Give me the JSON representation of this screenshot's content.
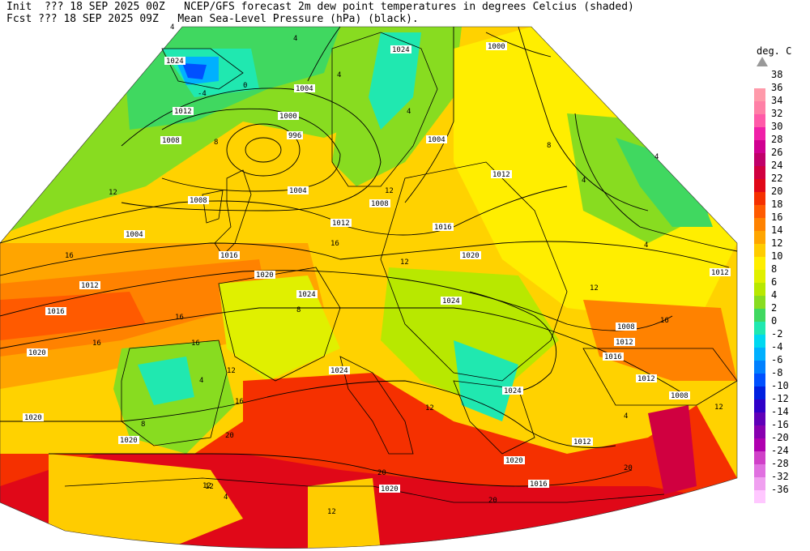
{
  "header": {
    "line1_left": "Init  ??? 18 SEP 2025 00Z",
    "line1_right": "NCEP/GFS forecast 2m dew point temperatures in degrees Celcius (shaded)",
    "line2_left": "Fcst ??? 18 SEP 2025 09Z",
    "line2_right": "Mean Sea-Level Pressure (hPa) (black)."
  },
  "legend": {
    "title": "deg. C",
    "levels": [
      {
        "label": "38",
        "color": "#ffb3b3"
      },
      {
        "label": "36",
        "color": "#ff9aaa"
      },
      {
        "label": "34",
        "color": "#ff80a6"
      },
      {
        "label": "32",
        "color": "#ff5aa8"
      },
      {
        "label": "30",
        "color": "#f020a8"
      },
      {
        "label": "28",
        "color": "#d00090"
      },
      {
        "label": "26",
        "color": "#c0006a"
      },
      {
        "label": "24",
        "color": "#d00040"
      },
      {
        "label": "22",
        "color": "#e00818"
      },
      {
        "label": "20",
        "color": "#f53000"
      },
      {
        "label": "18",
        "color": "#ff5a00"
      },
      {
        "label": "16",
        "color": "#ff8200"
      },
      {
        "label": "14",
        "color": "#ffa500"
      },
      {
        "label": "12",
        "color": "#ffcc00"
      },
      {
        "label": "10",
        "color": "#ffee00"
      },
      {
        "label": "8",
        "color": "#e0f000"
      },
      {
        "label": "6",
        "color": "#b8e800"
      },
      {
        "label": "4",
        "color": "#88dc20"
      },
      {
        "label": "2",
        "color": "#40d860"
      },
      {
        "label": "0",
        "color": "#20e8b0"
      },
      {
        "label": "-2",
        "color": "#00d8f0"
      },
      {
        "label": "-4",
        "color": "#00b0ff"
      },
      {
        "label": "-6",
        "color": "#0080ff"
      },
      {
        "label": "-8",
        "color": "#0050ff"
      },
      {
        "label": "-10",
        "color": "#0020e0"
      },
      {
        "label": "-12",
        "color": "#3000c8"
      },
      {
        "label": "-14",
        "color": "#6000b8"
      },
      {
        "label": "-16",
        "color": "#8800b0"
      },
      {
        "label": "-20",
        "color": "#b000b0"
      },
      {
        "label": "-24",
        "color": "#d040c8"
      },
      {
        "label": "-28",
        "color": "#e070e0"
      },
      {
        "label": "-32",
        "color": "#f0a0f0"
      },
      {
        "label": "-36",
        "color": "#ffc8ff"
      }
    ]
  },
  "isobar_labels": [
    "1000",
    "1004",
    "1008",
    "1012",
    "1016",
    "1020",
    "1024",
    "996"
  ],
  "dewpoint_labels": [
    "-4",
    "0",
    "4",
    "8",
    "12",
    "16",
    "20"
  ]
}
